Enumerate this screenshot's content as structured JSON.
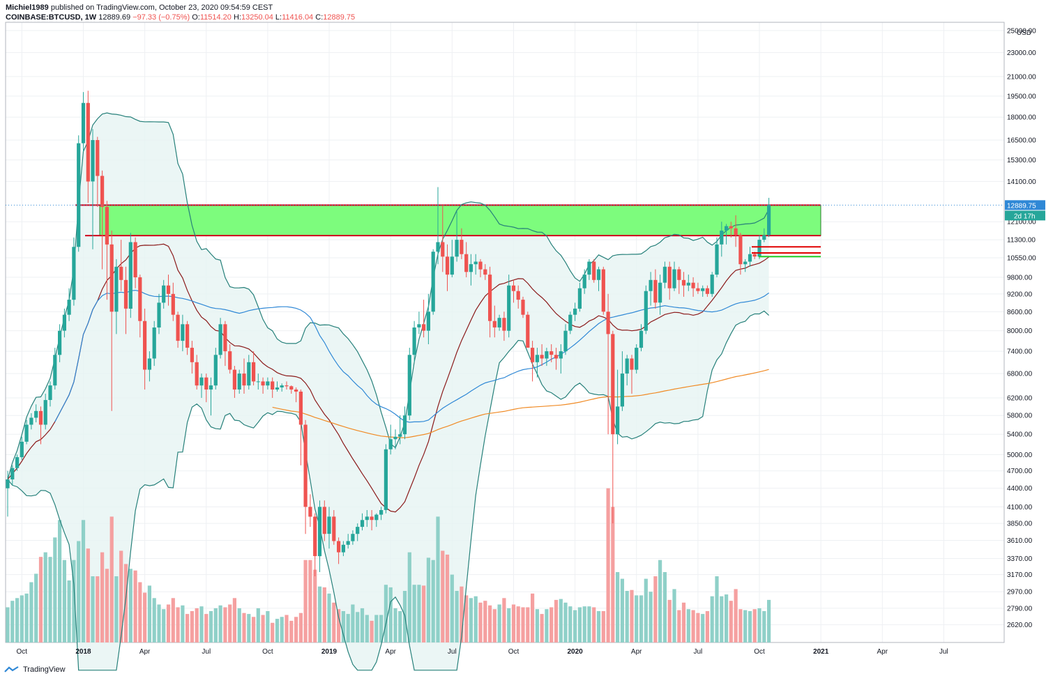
{
  "header": {
    "publisher": "Michiel1989",
    "published_text": "published on TradingView.com, October 23, 2020 09:54:59 CEST",
    "symbol": "COINBASE:BTCUSD, 1W",
    "last": "12889.69",
    "change": "−97.33 (−0.75%)",
    "o_label": "O:",
    "o": "11514.20",
    "h_label": "H:",
    "h": "13250.04",
    "l_label": "L:",
    "l": "11416.04",
    "c_label": "C:",
    "c": "12889.75"
  },
  "footer": {
    "brand": "TradingView"
  },
  "colors": {
    "up": "#26a69a",
    "down": "#ef5350",
    "up_vol": "#8fd0c8",
    "down_vol": "#f5a0a0",
    "zone_fill": "#7dfc7d",
    "zone_line": "#d0021b",
    "bb_line": "#26807a",
    "bb_fill": "#e6f4f2",
    "sma_red": "#8b1a1a",
    "ma_blue": "#2f88d6",
    "ma_orange": "#f08a24",
    "price_tag": "#2f88d6",
    "countdown_tag": "#26a69a"
  },
  "chart_data": {
    "type": "candlestick",
    "title": "COINBASE:BTCUSD, 1W",
    "y_scale": "log",
    "y_unit": "USD",
    "ylim": [
      2450,
      25800
    ],
    "y_ticks": [
      25000,
      23000,
      21000,
      19500,
      18000,
      16500,
      15300,
      14100,
      12100,
      11300,
      10550,
      9800,
      9200,
      8600,
      8000,
      7400,
      6800,
      6200,
      5800,
      5400,
      5000,
      4700,
      4400,
      4100,
      3850,
      3610,
      3370,
      3170,
      2970,
      2790,
      2620
    ],
    "y_tick_labels": [
      "25000.00",
      "23000.00",
      "21000.00",
      "19500.00",
      "18000.00",
      "16500.00",
      "15300.00",
      "14100.00",
      "12100.00",
      "11300.00",
      "10550.00",
      "9800.00",
      "9200.00",
      "8600.00",
      "8000.00",
      "7400.00",
      "6800.00",
      "6200.00",
      "5800.00",
      "5400.00",
      "5000.00",
      "4700.00",
      "4400.00",
      "4100.00",
      "3850.00",
      "3610.00",
      "3370.00",
      "3170.00",
      "2970.00",
      "2790.00",
      "2620.00"
    ],
    "x_labels": [
      "Oct",
      "2018",
      "Apr",
      "Jul",
      "Oct",
      "2019",
      "Apr",
      "Jul",
      "Oct",
      "2020",
      "Apr",
      "Jul",
      "Oct",
      "2021",
      "Apr",
      "Jul"
    ],
    "x_label_bold": [
      "2018",
      "2019",
      "2020",
      "2021"
    ],
    "x_label_index": [
      3,
      16,
      29,
      42,
      55,
      68,
      81,
      94,
      107,
      120,
      133,
      146,
      159,
      172,
      185,
      198
    ],
    "last_price_label": "12889.75",
    "countdown_label": "2d 17h",
    "last_price": 12889.75,
    "candles": [
      [
        4400,
        4700,
        3950,
        4550
      ],
      [
        4550,
        4800,
        4450,
        4750
      ],
      [
        4750,
        5000,
        4700,
        4950
      ],
      [
        4950,
        5350,
        4900,
        5250
      ],
      [
        5250,
        5700,
        5200,
        5600
      ],
      [
        5600,
        5850,
        5500,
        5750
      ],
      [
        5750,
        6050,
        5650,
        5900
      ],
      [
        5900,
        6000,
        5200,
        5600
      ],
      [
        5600,
        6300,
        5500,
        6150
      ],
      [
        6150,
        6600,
        6000,
        6500
      ],
      [
        6500,
        7500,
        6400,
        7300
      ],
      [
        7300,
        8200,
        7100,
        8000
      ],
      [
        8000,
        8700,
        7800,
        8500
      ],
      [
        8500,
        9400,
        8300,
        9000
      ],
      [
        9000,
        11400,
        8800,
        11000
      ],
      [
        11000,
        16800,
        10800,
        16300
      ],
      [
        16300,
        19800,
        15800,
        19000
      ],
      [
        19000,
        19900,
        13000,
        14100
      ],
      [
        14100,
        17200,
        10900,
        16500
      ],
      [
        16500,
        16700,
        12800,
        14400
      ],
      [
        14400,
        14700,
        10100,
        12800
      ],
      [
        12800,
        13100,
        9000,
        11100
      ],
      [
        11100,
        11700,
        5900,
        8600
      ],
      [
        8600,
        10500,
        7900,
        10200
      ],
      [
        10200,
        11300,
        9300,
        9700
      ],
      [
        9700,
        10200,
        7900,
        8700
      ],
      [
        8700,
        11600,
        8400,
        11200
      ],
      [
        11200,
        11400,
        9400,
        9800
      ],
      [
        9800,
        9900,
        7800,
        8300
      ],
      [
        8300,
        8700,
        6400,
        6900
      ],
      [
        6900,
        7400,
        6600,
        7200
      ],
      [
        7200,
        8300,
        7000,
        8100
      ],
      [
        8100,
        9200,
        7900,
        8900
      ],
      [
        8900,
        9700,
        8700,
        9500
      ],
      [
        9500,
        9900,
        8800,
        9200
      ],
      [
        9200,
        9600,
        8300,
        8500
      ],
      [
        8500,
        8600,
        7500,
        7700
      ],
      [
        7700,
        8500,
        7400,
        8200
      ],
      [
        8200,
        8300,
        7300,
        7500
      ],
      [
        7500,
        7700,
        6800,
        7100
      ],
      [
        7100,
        7300,
        6400,
        6500
      ],
      [
        6500,
        6800,
        6200,
        6700
      ],
      [
        6700,
        6800,
        6100,
        6400
      ],
      [
        6400,
        6700,
        5800,
        6500
      ],
      [
        6500,
        7500,
        6400,
        7300
      ],
      [
        7300,
        8400,
        7200,
        8200
      ],
      [
        8200,
        8300,
        7000,
        7400
      ],
      [
        7400,
        7600,
        6800,
        6900
      ],
      [
        6900,
        7000,
        6200,
        6400
      ],
      [
        6400,
        6900,
        6300,
        6800
      ],
      [
        6800,
        7200,
        6300,
        6500
      ],
      [
        6500,
        7300,
        6400,
        7100
      ],
      [
        7100,
        7400,
        6500,
        6600
      ],
      [
        6600,
        6800,
        6400,
        6600
      ],
      [
        6600,
        6700,
        6300,
        6500
      ],
      [
        6500,
        6700,
        6400,
        6600
      ],
      [
        6600,
        6700,
        6200,
        6400
      ],
      [
        6400,
        6600,
        6350,
        6450
      ],
      [
        6450,
        6550,
        6350,
        6500
      ],
      [
        6500,
        6600,
        6400,
        6480
      ],
      [
        6480,
        6500,
        6300,
        6400
      ],
      [
        6400,
        6450,
        6100,
        6350
      ],
      [
        6350,
        6400,
        4800,
        5600
      ],
      [
        5600,
        5700,
        3700,
        4100
      ],
      [
        4100,
        4300,
        3800,
        3950
      ],
      [
        3950,
        4000,
        3150,
        3400
      ],
      [
        3400,
        4200,
        3200,
        4100
      ],
      [
        4100,
        4200,
        3600,
        3700
      ],
      [
        3700,
        4100,
        3500,
        3950
      ],
      [
        3950,
        4050,
        3550,
        3600
      ],
      [
        3600,
        3650,
        3300,
        3450
      ],
      [
        3450,
        3600,
        3400,
        3550
      ],
      [
        3550,
        3700,
        3500,
        3600
      ],
      [
        3600,
        3750,
        3550,
        3700
      ],
      [
        3700,
        3850,
        3600,
        3800
      ],
      [
        3800,
        4000,
        3750,
        3900
      ],
      [
        3900,
        4050,
        3800,
        3950
      ],
      [
        3950,
        4050,
        3750,
        3900
      ],
      [
        3900,
        4000,
        3800,
        3980
      ],
      [
        3980,
        4100,
        3900,
        4050
      ],
      [
        4050,
        5200,
        4000,
        5100
      ],
      [
        5100,
        5600,
        5000,
        5300
      ],
      [
        5300,
        5500,
        5100,
        5350
      ],
      [
        5350,
        5800,
        5200,
        5400
      ],
      [
        5400,
        6000,
        5300,
        5800
      ],
      [
        5800,
        7500,
        5700,
        7300
      ],
      [
        7300,
        8300,
        7100,
        8100
      ],
      [
        8100,
        8600,
        7900,
        8200
      ],
      [
        8200,
        9000,
        7800,
        8000
      ],
      [
        8000,
        9200,
        7600,
        8600
      ],
      [
        8600,
        10900,
        8500,
        10800
      ],
      [
        10800,
        13800,
        10300,
        11200
      ],
      [
        11200,
        12900,
        10000,
        10600
      ],
      [
        10600,
        11100,
        9300,
        9900
      ],
      [
        9900,
        11300,
        9800,
        10600
      ],
      [
        10600,
        12600,
        10400,
        11300
      ],
      [
        11300,
        11800,
        10500,
        10700
      ],
      [
        10700,
        11200,
        9800,
        10000
      ],
      [
        10000,
        10700,
        9500,
        10300
      ],
      [
        10300,
        10700,
        9900,
        10400
      ],
      [
        10400,
        10500,
        9800,
        10100
      ],
      [
        10100,
        10300,
        9700,
        9900
      ],
      [
        9900,
        10200,
        7800,
        8300
      ],
      [
        8300,
        8800,
        7800,
        8100
      ],
      [
        8100,
        8500,
        8000,
        8400
      ],
      [
        8400,
        8600,
        7700,
        8000
      ],
      [
        8000,
        9900,
        7800,
        9500
      ],
      [
        9500,
        9700,
        8900,
        9300
      ],
      [
        9300,
        9500,
        8700,
        9000
      ],
      [
        9000,
        9100,
        8400,
        8500
      ],
      [
        8500,
        8600,
        7600,
        7500
      ],
      [
        7500,
        7700,
        6600,
        7100
      ],
      [
        7100,
        7500,
        6700,
        7300
      ],
      [
        7300,
        7600,
        7000,
        7200
      ],
      [
        7200,
        7500,
        7000,
        7400
      ],
      [
        7400,
        7600,
        7100,
        7300
      ],
      [
        7300,
        7500,
        6900,
        7200
      ],
      [
        7200,
        7600,
        6800,
        7400
      ],
      [
        7400,
        8200,
        7300,
        8000
      ],
      [
        8000,
        8600,
        7900,
        8500
      ],
      [
        8500,
        8900,
        8300,
        8700
      ],
      [
        8700,
        9600,
        8600,
        9400
      ],
      [
        9400,
        10100,
        9200,
        9900
      ],
      [
        9900,
        10500,
        9700,
        10400
      ],
      [
        10400,
        10500,
        9600,
        9700
      ],
      [
        9700,
        10200,
        9300,
        10100
      ],
      [
        10100,
        10200,
        8500,
        8600
      ],
      [
        8600,
        9200,
        5400,
        7900
      ],
      [
        7900,
        8000,
        3850,
        5400
      ],
      [
        5400,
        6900,
        5200,
        6000
      ],
      [
        6000,
        7400,
        5900,
        6800
      ],
      [
        6800,
        7300,
        6500,
        7200
      ],
      [
        7200,
        7300,
        6300,
        6900
      ],
      [
        6900,
        7600,
        6800,
        7500
      ],
      [
        7500,
        8200,
        7400,
        8000
      ],
      [
        8000,
        9500,
        7900,
        9300
      ],
      [
        9300,
        10000,
        8800,
        9700
      ],
      [
        9700,
        10100,
        8700,
        8900
      ],
      [
        8900,
        9900,
        8500,
        9600
      ],
      [
        9600,
        10400,
        9400,
        10200
      ],
      [
        10200,
        10400,
        9000,
        9400
      ],
      [
        9400,
        10400,
        9300,
        10100
      ],
      [
        10100,
        10200,
        9200,
        9700
      ],
      [
        9700,
        10000,
        9100,
        9500
      ],
      [
        9500,
        9900,
        9300,
        9600
      ],
      [
        9600,
        9800,
        9100,
        9400
      ],
      [
        9400,
        9600,
        9200,
        9300
      ],
      [
        9300,
        9500,
        9100,
        9400
      ],
      [
        9400,
        9500,
        9100,
        9200
      ],
      [
        9200,
        10000,
        9100,
        9900
      ],
      [
        9900,
        11400,
        9800,
        11100
      ],
      [
        11100,
        12100,
        10600,
        11700
      ],
      [
        11700,
        12000,
        11100,
        11900
      ],
      [
        11900,
        12100,
        11400,
        11800
      ],
      [
        11800,
        12400,
        11000,
        11500
      ],
      [
        11500,
        11600,
        9900,
        10300
      ],
      [
        10300,
        10500,
        10000,
        10400
      ],
      [
        10400,
        11000,
        10200,
        10700
      ],
      [
        10700,
        10800,
        10500,
        10600
      ],
      [
        10600,
        11500,
        10500,
        11300
      ],
      [
        11300,
        11800,
        11200,
        11500
      ],
      [
        11500,
        13250,
        11416,
        12890
      ]
    ],
    "volumes": [
      2800,
      2870,
      2900,
      2930,
      2950,
      3080,
      3180,
      3390,
      3450,
      3390,
      3650,
      3900,
      3350,
      3100,
      3350,
      3600,
      3900,
      3500,
      3150,
      3150,
      3450,
      3240,
      3950,
      3150,
      3470,
      3300,
      3240,
      3220,
      3080,
      2960,
      3040,
      2900,
      2830,
      2780,
      2830,
      2900,
      2800,
      2820,
      2730,
      2760,
      2790,
      2810,
      2730,
      2760,
      2790,
      2820,
      2800,
      2830,
      2900,
      2790,
      2740,
      2730,
      2700,
      2790,
      2720,
      2760,
      2640,
      2680,
      2700,
      2720,
      2660,
      2700,
      2740,
      3350,
      3350,
      3230,
      3030,
      3020,
      2950,
      2850,
      2780,
      2760,
      2730,
      2830,
      2750,
      2790,
      2720,
      2660,
      2720,
      2720,
      3050,
      3020,
      2790,
      2760,
      2980,
      3450,
      3050,
      3050,
      3040,
      3380,
      3350,
      3950,
      3470,
      3420,
      3170,
      2980,
      3030,
      2930,
      2900,
      2920,
      2850,
      2870,
      2820,
      2780,
      2830,
      2900,
      2790,
      2830,
      2810,
      2800,
      2800,
      2950,
      2780,
      2730,
      2780,
      2800,
      2880,
      2890,
      2850,
      2810,
      2770,
      2800,
      2810,
      2810,
      2800,
      2760,
      2760,
      4400,
      4100,
      3200,
      3120,
      2980,
      2990,
      2930,
      2930,
      3120,
      2970,
      3150,
      3350,
      3200,
      2880,
      3000,
      2770,
      2850,
      2780,
      2770,
      2740,
      2730,
      2760,
      2920,
      3150,
      2920,
      2940,
      2870,
      3000,
      2780,
      2770,
      2760,
      2780,
      2790,
      2760,
      2880
    ],
    "resistance_zone": {
      "top": 12890,
      "bottom": 11480
    },
    "support_lines_red": [
      11000,
      10750
    ],
    "support_line_green": [
      10600
    ]
  }
}
